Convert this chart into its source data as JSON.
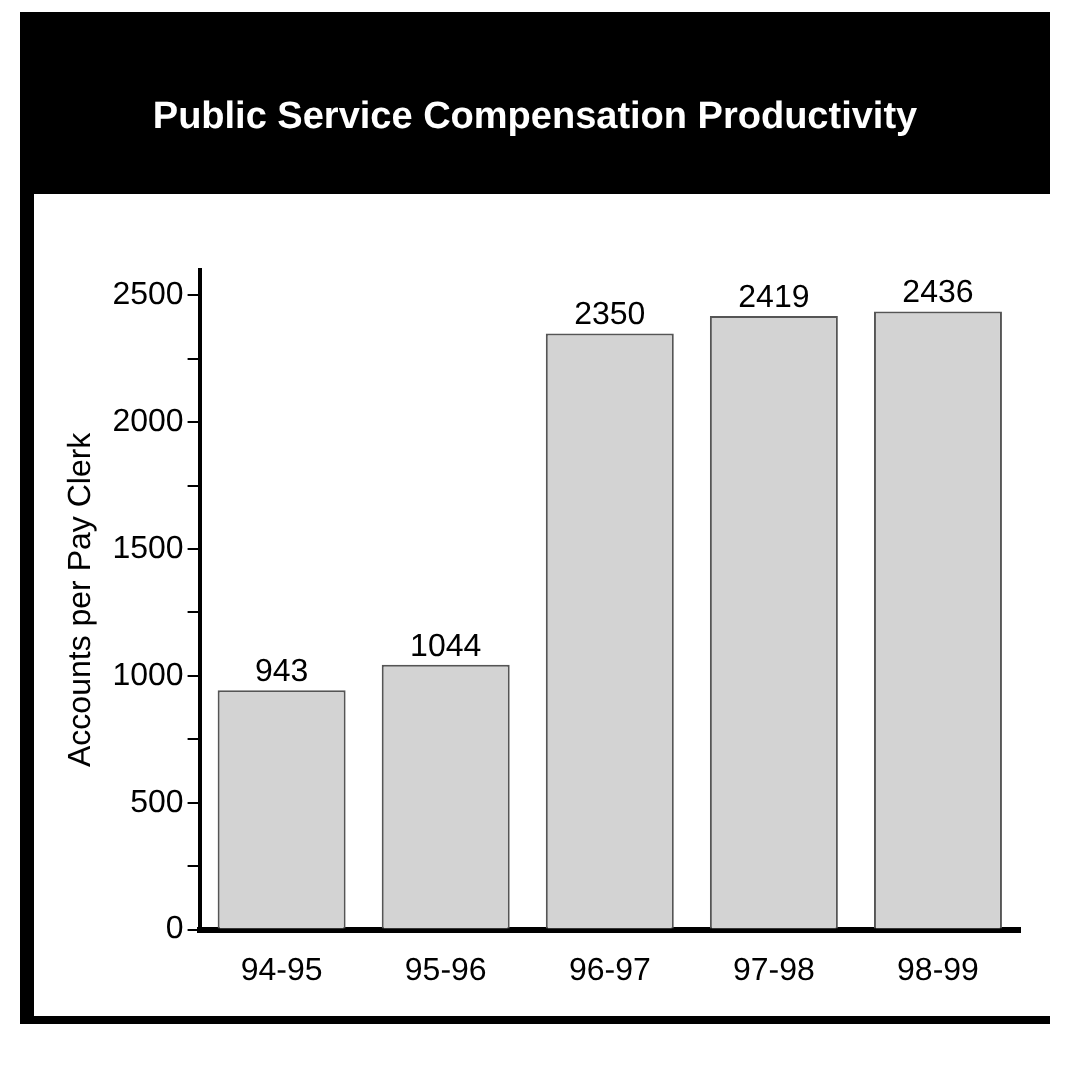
{
  "chart_data": {
    "type": "bar",
    "title": "Public Service Compensation Productivity",
    "ylabel": "Accounts per Pay Clerk",
    "categories": [
      "94-95",
      "95-96",
      "96-97",
      "97-98",
      "98-99"
    ],
    "values": [
      943,
      1044,
      2350,
      2419,
      2436
    ],
    "color": "#d3d3d3",
    "ylim": [
      0,
      2600
    ],
    "yticks": [
      0,
      {
        "value": 250,
        "label": null
      },
      500,
      {
        "value": 750,
        "label": null
      },
      1000,
      {
        "value": 1250,
        "label": null
      },
      1500,
      {
        "value": 1750,
        "label": null
      },
      2000,
      {
        "value": 2250,
        "label": null
      },
      2500
    ],
    "data_labels": true,
    "grid": false,
    "legend": false
  }
}
